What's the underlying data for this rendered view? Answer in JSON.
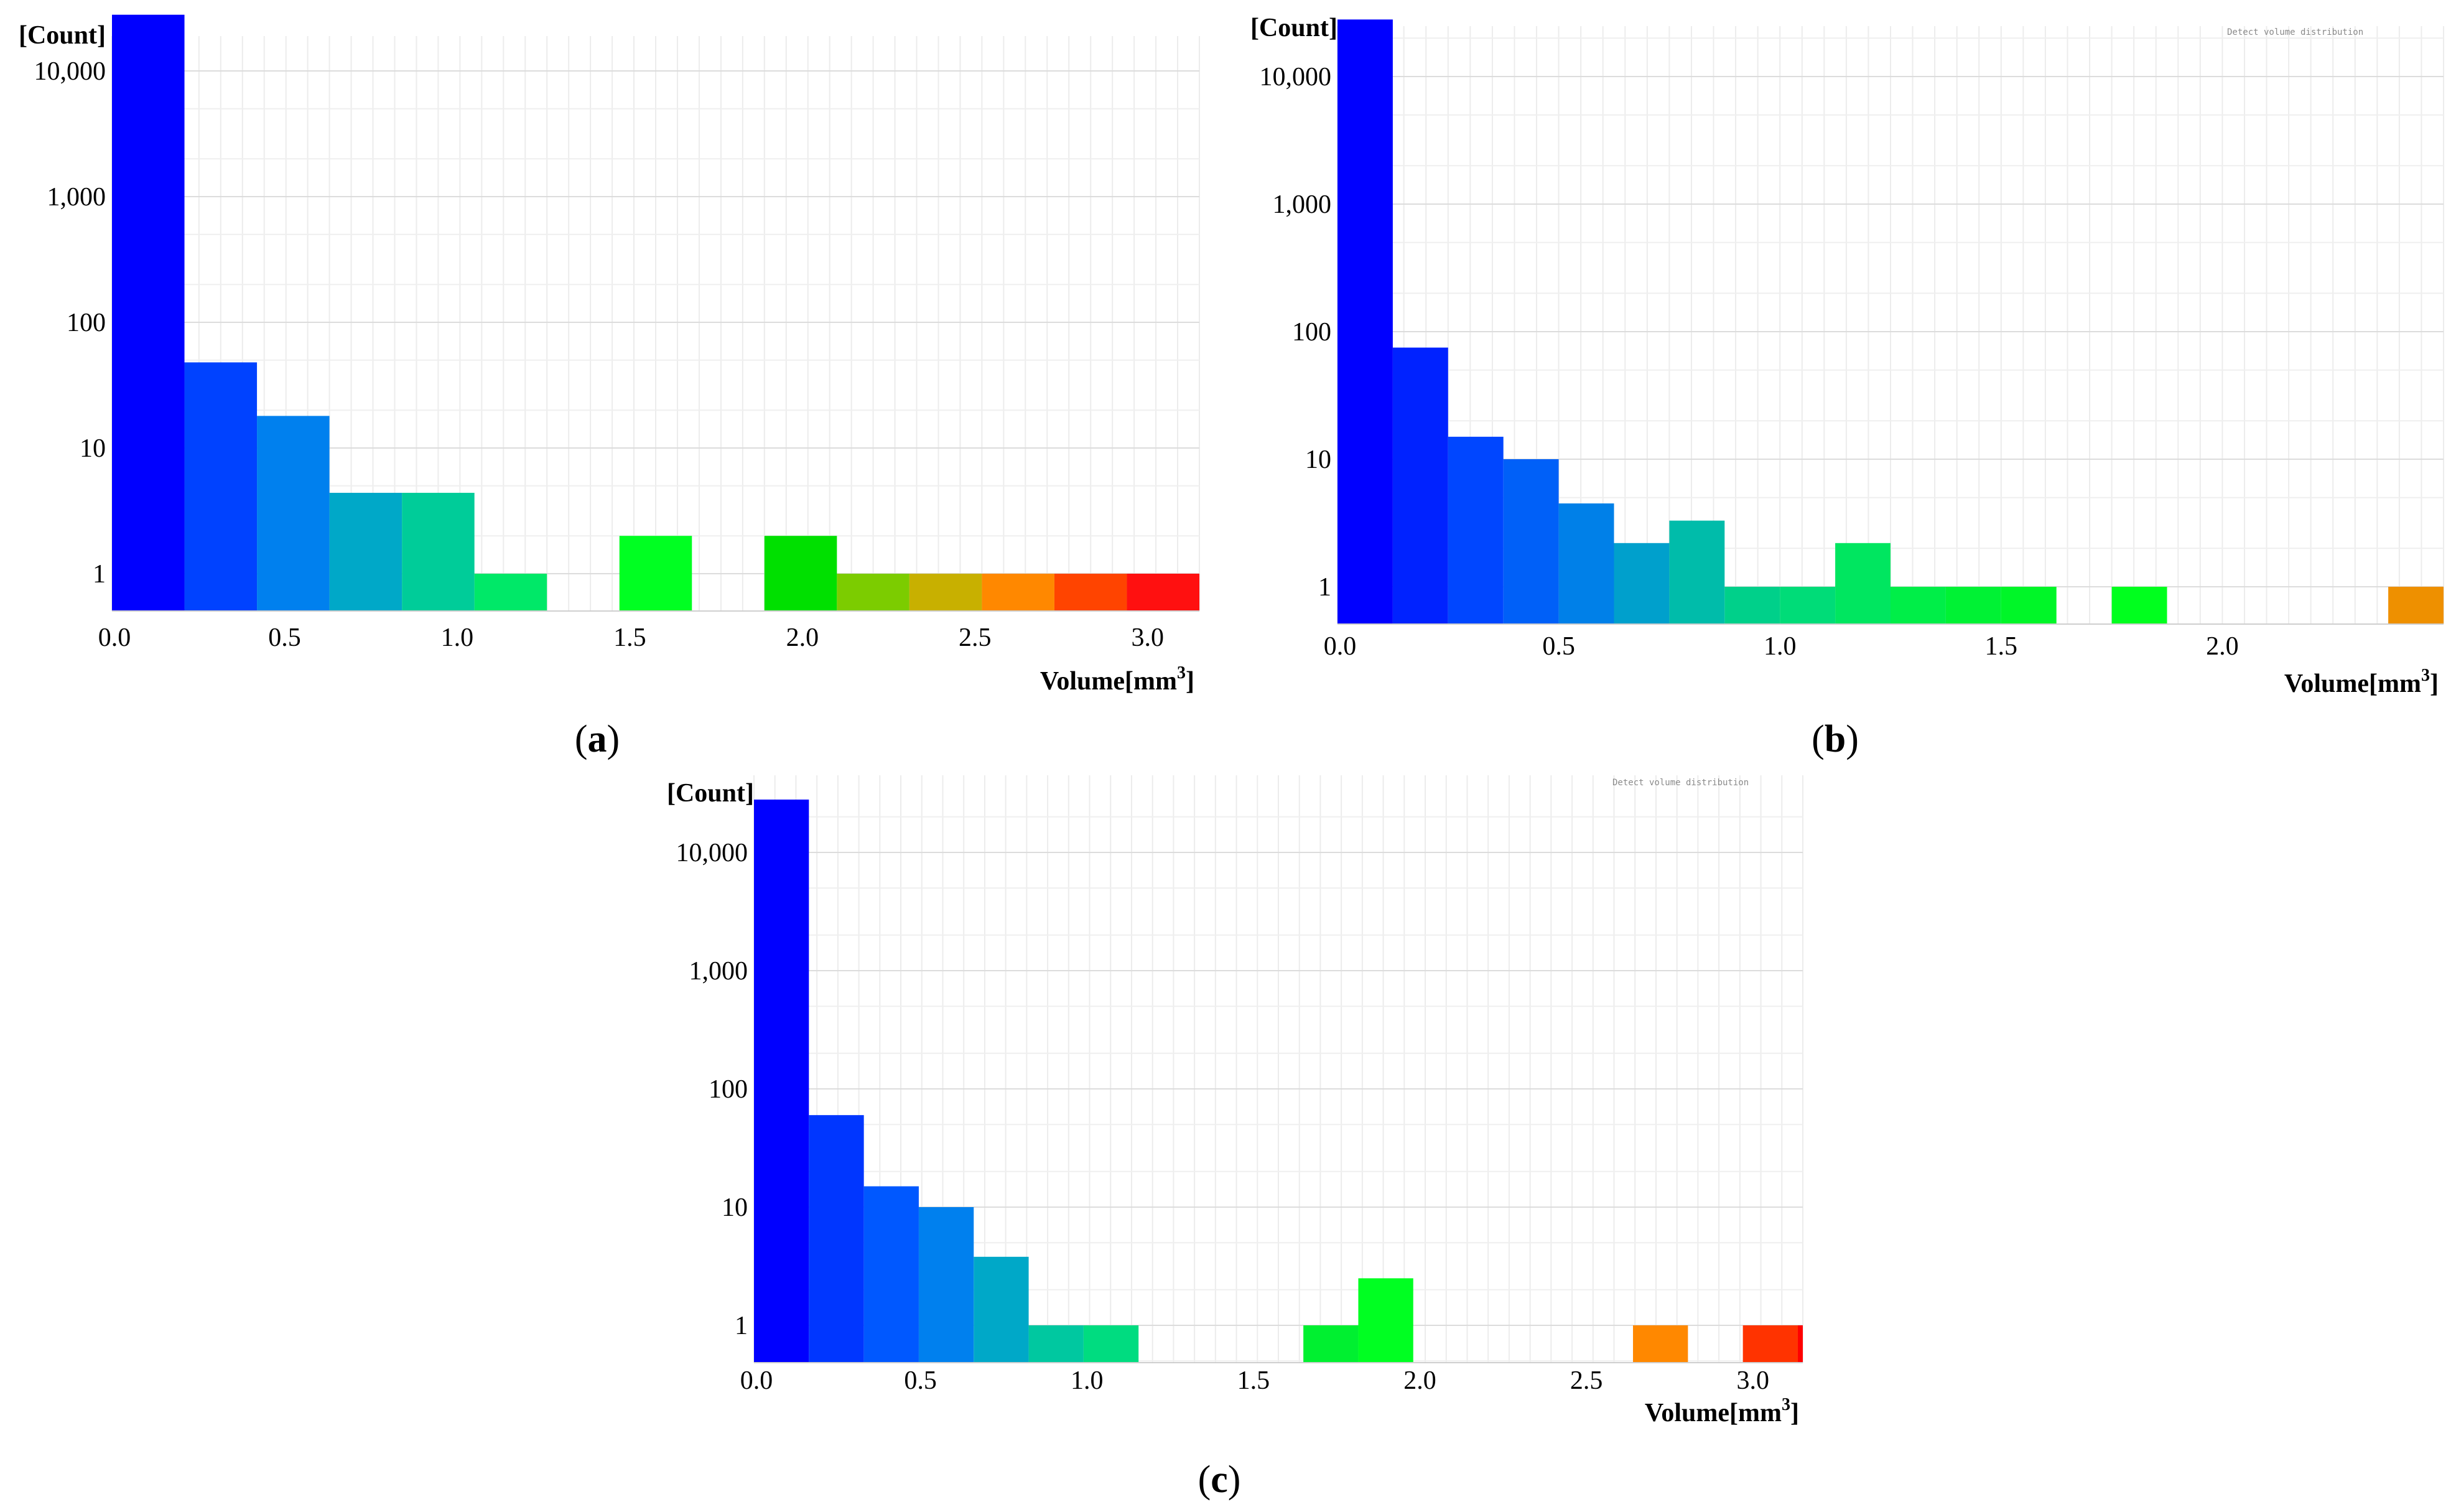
{
  "chart_data": [
    {
      "id": "a",
      "type": "bar",
      "panel_label": "a",
      "title": "",
      "ylabel": "[Count]",
      "xlabel": "Volume[mm",
      "xlabel_sup": "3",
      "xlabel_close": "]",
      "yscale": "log",
      "yticks": [
        1,
        10,
        100,
        1000,
        10000
      ],
      "ytick_labels": [
        "1",
        "10",
        "100",
        "1,000",
        "10,000"
      ],
      "xlim": [
        0,
        3.15
      ],
      "xticks": [
        0,
        0.5,
        1.0,
        1.5,
        2.0,
        2.5,
        3.0
      ],
      "xtick_labels": [
        "0.0",
        "0.5",
        "1.0",
        "1.5",
        "2.0",
        "2.5",
        "3.0"
      ],
      "bins": [
        {
          "x0": 0.0,
          "x1": 0.21,
          "value": 28000,
          "color": "#0000ff"
        },
        {
          "x0": 0.21,
          "x1": 0.42,
          "value": 48,
          "color": "#0042ff"
        },
        {
          "x0": 0.42,
          "x1": 0.63,
          "value": 18,
          "color": "#0080ee"
        },
        {
          "x0": 0.63,
          "x1": 0.84,
          "value": 4.4,
          "color": "#00a8c8"
        },
        {
          "x0": 0.84,
          "x1": 1.05,
          "value": 4.4,
          "color": "#00cc99"
        },
        {
          "x0": 1.05,
          "x1": 1.26,
          "value": 1,
          "color": "#00e868"
        },
        {
          "x0": 1.47,
          "x1": 1.68,
          "value": 2,
          "color": "#00ff22"
        },
        {
          "x0": 1.89,
          "x1": 2.1,
          "value": 2,
          "color": "#00e000"
        },
        {
          "x0": 2.1,
          "x1": 2.31,
          "value": 1,
          "color": "#7ccc00"
        },
        {
          "x0": 2.31,
          "x1": 2.52,
          "value": 1,
          "color": "#c8b000"
        },
        {
          "x0": 2.52,
          "x1": 2.73,
          "value": 1,
          "color": "#ff8800"
        },
        {
          "x0": 2.73,
          "x1": 2.94,
          "value": 1,
          "color": "#ff4400"
        },
        {
          "x0": 2.94,
          "x1": 3.15,
          "value": 1,
          "color": "#ff1010"
        }
      ]
    },
    {
      "id": "b",
      "type": "bar",
      "panel_label": "b",
      "title": "Detect volume distribution",
      "ylabel": "[Count]",
      "xlabel": "Volume[mm",
      "xlabel_sup": "3",
      "xlabel_close": "]",
      "yscale": "log",
      "yticks": [
        1,
        10,
        100,
        1000,
        10000
      ],
      "ytick_labels": [
        "1",
        "10",
        "100",
        "1,000",
        "10,000"
      ],
      "xlim": [
        0,
        2.5
      ],
      "xticks": [
        0,
        0.5,
        1.0,
        1.5,
        2.0
      ],
      "xtick_labels": [
        "0.0",
        "0.5",
        "1.0",
        "1.5",
        "2.0"
      ],
      "bins": [
        {
          "x0": 0.0,
          "x1": 0.125,
          "value": 28000,
          "color": "#0000ff"
        },
        {
          "x0": 0.125,
          "x1": 0.25,
          "value": 75,
          "color": "#0022ff"
        },
        {
          "x0": 0.25,
          "x1": 0.375,
          "value": 15,
          "color": "#0046ff"
        },
        {
          "x0": 0.375,
          "x1": 0.5,
          "value": 10,
          "color": "#0060f8"
        },
        {
          "x0": 0.5,
          "x1": 0.625,
          "value": 4.5,
          "color": "#0080e8"
        },
        {
          "x0": 0.625,
          "x1": 0.75,
          "value": 2.2,
          "color": "#00a0cc"
        },
        {
          "x0": 0.75,
          "x1": 0.875,
          "value": 3.3,
          "color": "#00bcaa"
        },
        {
          "x0": 0.875,
          "x1": 1.0,
          "value": 1,
          "color": "#00d08a"
        },
        {
          "x0": 1.0,
          "x1": 1.125,
          "value": 1,
          "color": "#00dc78"
        },
        {
          "x0": 1.125,
          "x1": 1.25,
          "value": 2.2,
          "color": "#00e660"
        },
        {
          "x0": 1.25,
          "x1": 1.375,
          "value": 1,
          "color": "#00ee48"
        },
        {
          "x0": 1.375,
          "x1": 1.5,
          "value": 1,
          "color": "#00f234"
        },
        {
          "x0": 1.5,
          "x1": 1.625,
          "value": 1,
          "color": "#00f628"
        },
        {
          "x0": 1.75,
          "x1": 1.875,
          "value": 1,
          "color": "#00ff1e"
        },
        {
          "x0": 2.375,
          "x1": 2.5,
          "value": 1,
          "color": "#ee9000"
        }
      ]
    },
    {
      "id": "c",
      "type": "bar",
      "panel_label": "c",
      "title": "Detect volume distribution",
      "ylabel": "[Count]",
      "xlabel": "Volume[mm",
      "xlabel_sup": "3",
      "xlabel_close": "]",
      "yscale": "log",
      "yticks": [
        1,
        10,
        100,
        1000,
        10000
      ],
      "ytick_labels": [
        "1",
        "10",
        "100",
        "1,000",
        "10,000"
      ],
      "xlim": [
        0,
        3.15
      ],
      "xticks": [
        0,
        0.5,
        1.0,
        1.5,
        2.0,
        2.5,
        3.0
      ],
      "xtick_labels": [
        "0.0",
        "0.5",
        "1.0",
        "1.5",
        "2.0",
        "2.5",
        "3.0"
      ],
      "bins": [
        {
          "x0": 0.0,
          "x1": 0.165,
          "value": 28000,
          "color": "#0000ff"
        },
        {
          "x0": 0.165,
          "x1": 0.33,
          "value": 60,
          "color": "#0036ff"
        },
        {
          "x0": 0.33,
          "x1": 0.495,
          "value": 15,
          "color": "#0058ff"
        },
        {
          "x0": 0.495,
          "x1": 0.66,
          "value": 10,
          "color": "#0080ee"
        },
        {
          "x0": 0.66,
          "x1": 0.825,
          "value": 3.8,
          "color": "#00a8c8"
        },
        {
          "x0": 0.825,
          "x1": 0.99,
          "value": 1,
          "color": "#00c8a0"
        },
        {
          "x0": 0.99,
          "x1": 1.155,
          "value": 1,
          "color": "#00dc80"
        },
        {
          "x0": 1.65,
          "x1": 1.815,
          "value": 1,
          "color": "#00f030"
        },
        {
          "x0": 1.815,
          "x1": 1.98,
          "value": 2.5,
          "color": "#00ff22"
        },
        {
          "x0": 2.64,
          "x1": 2.805,
          "value": 1,
          "color": "#ff8800"
        },
        {
          "x0": 2.97,
          "x1": 3.135,
          "value": 1,
          "color": "#ff3300"
        },
        {
          "x0": 3.135,
          "x1": 3.15,
          "value": 1,
          "color": "#ff0000"
        }
      ]
    }
  ]
}
